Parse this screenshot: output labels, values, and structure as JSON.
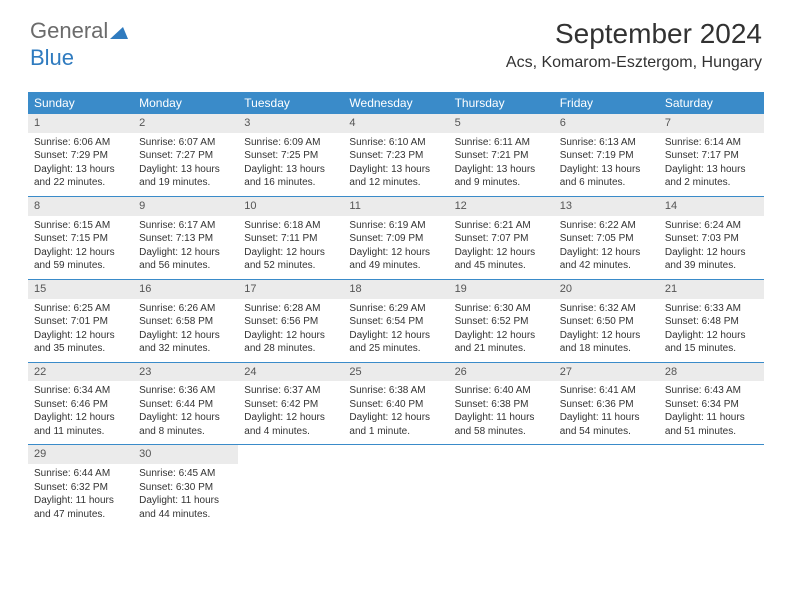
{
  "logo": {
    "word1": "General",
    "word2": "Blue"
  },
  "title": "September 2024",
  "location": "Acs, Komarom-Esztergom, Hungary",
  "colors": {
    "header_bg": "#3a8bc9",
    "header_text": "#ffffff",
    "daynum_bg": "#ebebeb",
    "border": "#3a8bc9",
    "logo_gray": "#6b6b6b",
    "logo_blue": "#2f7bbf"
  },
  "daynames": [
    "Sunday",
    "Monday",
    "Tuesday",
    "Wednesday",
    "Thursday",
    "Friday",
    "Saturday"
  ],
  "days": [
    {
      "n": "1",
      "sunrise": "Sunrise: 6:06 AM",
      "sunset": "Sunset: 7:29 PM",
      "dl1": "Daylight: 13 hours",
      "dl2": "and 22 minutes."
    },
    {
      "n": "2",
      "sunrise": "Sunrise: 6:07 AM",
      "sunset": "Sunset: 7:27 PM",
      "dl1": "Daylight: 13 hours",
      "dl2": "and 19 minutes."
    },
    {
      "n": "3",
      "sunrise": "Sunrise: 6:09 AM",
      "sunset": "Sunset: 7:25 PM",
      "dl1": "Daylight: 13 hours",
      "dl2": "and 16 minutes."
    },
    {
      "n": "4",
      "sunrise": "Sunrise: 6:10 AM",
      "sunset": "Sunset: 7:23 PM",
      "dl1": "Daylight: 13 hours",
      "dl2": "and 12 minutes."
    },
    {
      "n": "5",
      "sunrise": "Sunrise: 6:11 AM",
      "sunset": "Sunset: 7:21 PM",
      "dl1": "Daylight: 13 hours",
      "dl2": "and 9 minutes."
    },
    {
      "n": "6",
      "sunrise": "Sunrise: 6:13 AM",
      "sunset": "Sunset: 7:19 PM",
      "dl1": "Daylight: 13 hours",
      "dl2": "and 6 minutes."
    },
    {
      "n": "7",
      "sunrise": "Sunrise: 6:14 AM",
      "sunset": "Sunset: 7:17 PM",
      "dl1": "Daylight: 13 hours",
      "dl2": "and 2 minutes."
    },
    {
      "n": "8",
      "sunrise": "Sunrise: 6:15 AM",
      "sunset": "Sunset: 7:15 PM",
      "dl1": "Daylight: 12 hours",
      "dl2": "and 59 minutes."
    },
    {
      "n": "9",
      "sunrise": "Sunrise: 6:17 AM",
      "sunset": "Sunset: 7:13 PM",
      "dl1": "Daylight: 12 hours",
      "dl2": "and 56 minutes."
    },
    {
      "n": "10",
      "sunrise": "Sunrise: 6:18 AM",
      "sunset": "Sunset: 7:11 PM",
      "dl1": "Daylight: 12 hours",
      "dl2": "and 52 minutes."
    },
    {
      "n": "11",
      "sunrise": "Sunrise: 6:19 AM",
      "sunset": "Sunset: 7:09 PM",
      "dl1": "Daylight: 12 hours",
      "dl2": "and 49 minutes."
    },
    {
      "n": "12",
      "sunrise": "Sunrise: 6:21 AM",
      "sunset": "Sunset: 7:07 PM",
      "dl1": "Daylight: 12 hours",
      "dl2": "and 45 minutes."
    },
    {
      "n": "13",
      "sunrise": "Sunrise: 6:22 AM",
      "sunset": "Sunset: 7:05 PM",
      "dl1": "Daylight: 12 hours",
      "dl2": "and 42 minutes."
    },
    {
      "n": "14",
      "sunrise": "Sunrise: 6:24 AM",
      "sunset": "Sunset: 7:03 PM",
      "dl1": "Daylight: 12 hours",
      "dl2": "and 39 minutes."
    },
    {
      "n": "15",
      "sunrise": "Sunrise: 6:25 AM",
      "sunset": "Sunset: 7:01 PM",
      "dl1": "Daylight: 12 hours",
      "dl2": "and 35 minutes."
    },
    {
      "n": "16",
      "sunrise": "Sunrise: 6:26 AM",
      "sunset": "Sunset: 6:58 PM",
      "dl1": "Daylight: 12 hours",
      "dl2": "and 32 minutes."
    },
    {
      "n": "17",
      "sunrise": "Sunrise: 6:28 AM",
      "sunset": "Sunset: 6:56 PM",
      "dl1": "Daylight: 12 hours",
      "dl2": "and 28 minutes."
    },
    {
      "n": "18",
      "sunrise": "Sunrise: 6:29 AM",
      "sunset": "Sunset: 6:54 PM",
      "dl1": "Daylight: 12 hours",
      "dl2": "and 25 minutes."
    },
    {
      "n": "19",
      "sunrise": "Sunrise: 6:30 AM",
      "sunset": "Sunset: 6:52 PM",
      "dl1": "Daylight: 12 hours",
      "dl2": "and 21 minutes."
    },
    {
      "n": "20",
      "sunrise": "Sunrise: 6:32 AM",
      "sunset": "Sunset: 6:50 PM",
      "dl1": "Daylight: 12 hours",
      "dl2": "and 18 minutes."
    },
    {
      "n": "21",
      "sunrise": "Sunrise: 6:33 AM",
      "sunset": "Sunset: 6:48 PM",
      "dl1": "Daylight: 12 hours",
      "dl2": "and 15 minutes."
    },
    {
      "n": "22",
      "sunrise": "Sunrise: 6:34 AM",
      "sunset": "Sunset: 6:46 PM",
      "dl1": "Daylight: 12 hours",
      "dl2": "and 11 minutes."
    },
    {
      "n": "23",
      "sunrise": "Sunrise: 6:36 AM",
      "sunset": "Sunset: 6:44 PM",
      "dl1": "Daylight: 12 hours",
      "dl2": "and 8 minutes."
    },
    {
      "n": "24",
      "sunrise": "Sunrise: 6:37 AM",
      "sunset": "Sunset: 6:42 PM",
      "dl1": "Daylight: 12 hours",
      "dl2": "and 4 minutes."
    },
    {
      "n": "25",
      "sunrise": "Sunrise: 6:38 AM",
      "sunset": "Sunset: 6:40 PM",
      "dl1": "Daylight: 12 hours",
      "dl2": "and 1 minute."
    },
    {
      "n": "26",
      "sunrise": "Sunrise: 6:40 AM",
      "sunset": "Sunset: 6:38 PM",
      "dl1": "Daylight: 11 hours",
      "dl2": "and 58 minutes."
    },
    {
      "n": "27",
      "sunrise": "Sunrise: 6:41 AM",
      "sunset": "Sunset: 6:36 PM",
      "dl1": "Daylight: 11 hours",
      "dl2": "and 54 minutes."
    },
    {
      "n": "28",
      "sunrise": "Sunrise: 6:43 AM",
      "sunset": "Sunset: 6:34 PM",
      "dl1": "Daylight: 11 hours",
      "dl2": "and 51 minutes."
    },
    {
      "n": "29",
      "sunrise": "Sunrise: 6:44 AM",
      "sunset": "Sunset: 6:32 PM",
      "dl1": "Daylight: 11 hours",
      "dl2": "and 47 minutes."
    },
    {
      "n": "30",
      "sunrise": "Sunrise: 6:45 AM",
      "sunset": "Sunset: 6:30 PM",
      "dl1": "Daylight: 11 hours",
      "dl2": "and 44 minutes."
    }
  ]
}
